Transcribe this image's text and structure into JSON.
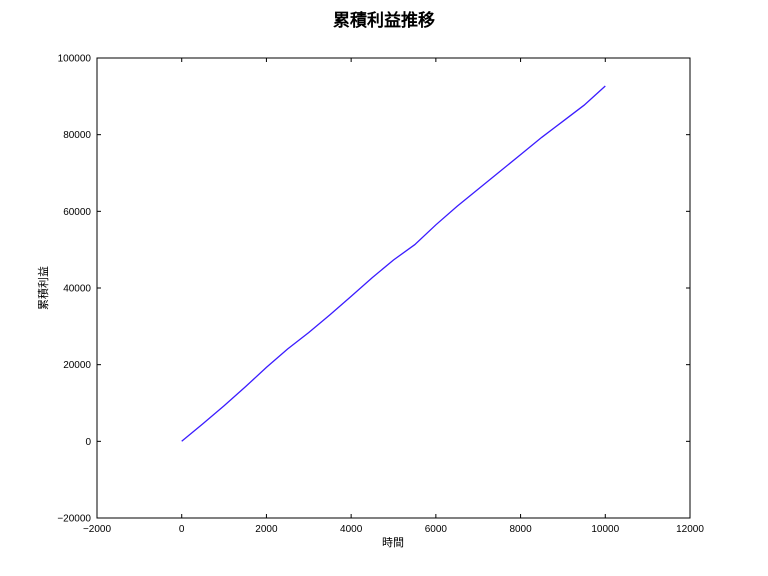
{
  "chart_data": {
    "type": "line",
    "title": "累積利益推移",
    "xlabel": "時間",
    "ylabel": "累積利益",
    "xlim": [
      -2000,
      12000
    ],
    "ylim": [
      -20000,
      100000
    ],
    "xticks": [
      -2000,
      0,
      2000,
      4000,
      6000,
      8000,
      10000,
      12000
    ],
    "yticks": [
      -20000,
      0,
      20000,
      40000,
      60000,
      80000,
      100000
    ],
    "grid": false,
    "line_color": "#3b1cff",
    "series": [
      {
        "x": [
          0,
          500,
          1000,
          1500,
          2000,
          2500,
          3000,
          3500,
          4000,
          4500,
          5000,
          5500,
          6000,
          6500,
          7000,
          7500,
          8000,
          8500,
          9000,
          9500,
          10000
        ],
        "y": [
          0,
          4600,
          9300,
          14200,
          19300,
          24100,
          28400,
          33000,
          37800,
          42700,
          47300,
          51300,
          56500,
          61300,
          65800,
          70300,
          74800,
          79300,
          83500,
          87700,
          92700
        ]
      }
    ]
  }
}
